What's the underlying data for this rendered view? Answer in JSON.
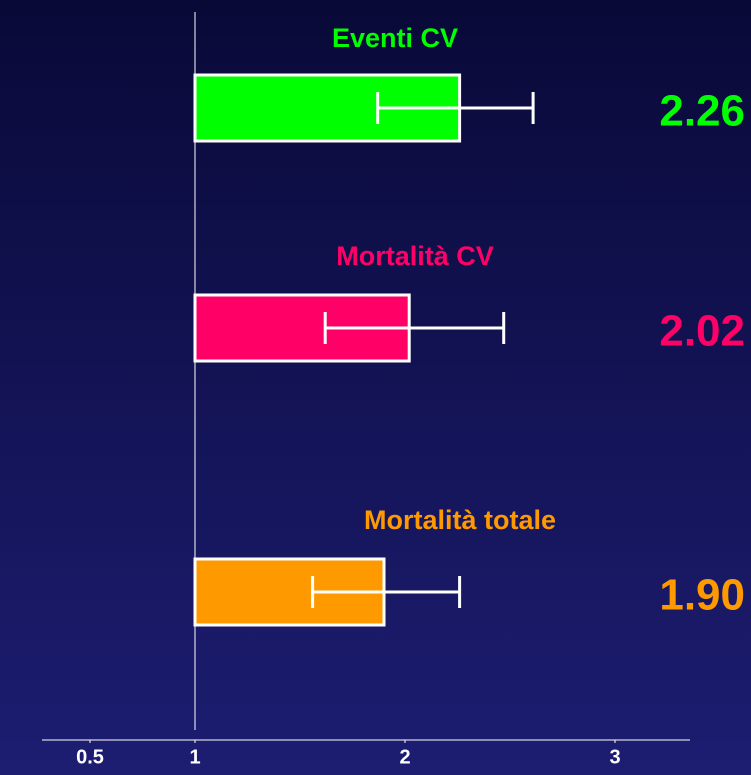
{
  "chart_data": {
    "type": "hbar",
    "categories": [
      "Eventi  CV",
      "Mortalità CV",
      "Mortalità totale"
    ],
    "values": [
      2.26,
      2.02,
      1.9
    ],
    "value_labels": [
      "2.26",
      "2.02",
      "1.90"
    ],
    "ci_low": [
      1.87,
      1.62,
      1.56
    ],
    "ci_high": [
      2.61,
      2.47,
      2.26
    ],
    "colors": [
      "#00ff00",
      "#ff0066",
      "#ff9900"
    ],
    "base": 1,
    "xlim": [
      0.5,
      3.2
    ],
    "xticks": [
      0.5,
      1,
      2,
      3
    ]
  }
}
